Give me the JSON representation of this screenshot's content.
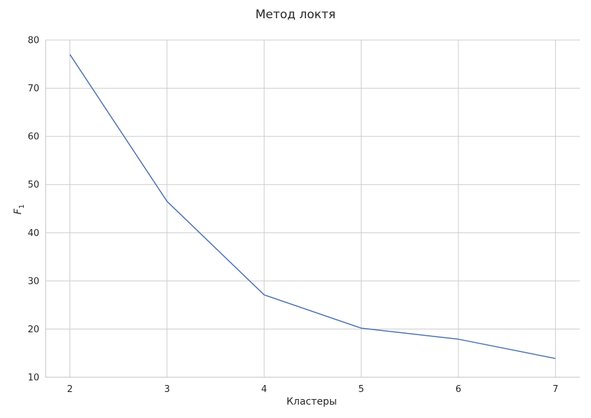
{
  "chart_data": {
    "type": "line",
    "title": "Метод локтя",
    "xlabel": "Кластеры",
    "ylabel": "F",
    "ylabel_sub": "1",
    "x": [
      2,
      3,
      4,
      5,
      6,
      7
    ],
    "series": [
      {
        "values": [
          77.0,
          46.5,
          27.1,
          20.2,
          17.9,
          13.9
        ]
      }
    ],
    "xticks": [
      2,
      3,
      4,
      5,
      6,
      7
    ],
    "yticks": [
      10,
      20,
      30,
      40,
      50,
      60,
      70,
      80
    ],
    "xlim": [
      1.75,
      7.25
    ],
    "ylim": [
      10,
      80
    ],
    "grid": true,
    "colors": {
      "series": "#4c72b0",
      "grid": "#cccccc",
      "text": "#262626"
    }
  }
}
